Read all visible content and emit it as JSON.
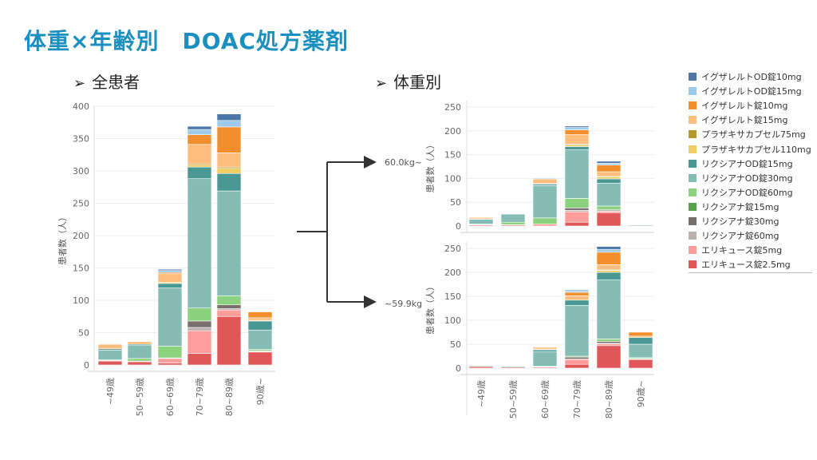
{
  "title": "体重×年齢別　DOAC処方薬剤",
  "panel_all_label": "全患者",
  "panel_weight_label": "体重別",
  "weight_group_high": "60.0kg~",
  "weight_group_low": "~59.9kg",
  "colors": [
    "#4a76a8",
    "#9ecae9",
    "#f28e2b",
    "#ffbe7d",
    "#b6992d",
    "#f1ce63",
    "#499894",
    "#86bcb6",
    "#8cd17d",
    "#59a14f",
    "#79706e",
    "#bab0ac",
    "#ff9d9a",
    "#e15759"
  ],
  "chart_data": [
    {
      "type": "bar",
      "stacked": true,
      "title": "",
      "ylabel": "患者数（人）",
      "xlabel": "",
      "ylim": [
        0,
        400
      ],
      "yticks": [
        0,
        50,
        100,
        150,
        200,
        250,
        300,
        350,
        400
      ],
      "grid": true,
      "categories": [
        "~49歳",
        "50~59歳",
        "60~69歳",
        "70~79歳",
        "80~89歳",
        "90歳~"
      ],
      "series": [
        {
          "name": "エリキュース錠2.5mg",
          "values": [
            6,
            5,
            3,
            18,
            75,
            20
          ]
        },
        {
          "name": "エリキュース錠5mg",
          "values": [
            1,
            1,
            7,
            35,
            10,
            1
          ]
        },
        {
          "name": "リクシアナ錠60mg",
          "values": [
            0,
            0,
            0,
            5,
            2,
            0
          ]
        },
        {
          "name": "リクシアナ錠30mg",
          "values": [
            0,
            0,
            1,
            10,
            6,
            1
          ]
        },
        {
          "name": "リクシアナ錠15mg",
          "values": [
            0,
            0,
            0,
            0,
            0,
            0
          ]
        },
        {
          "name": "リクシアナOD錠60mg",
          "values": [
            1,
            4,
            18,
            20,
            14,
            2
          ]
        },
        {
          "name": "リクシアナOD錠30mg",
          "values": [
            15,
            20,
            90,
            200,
            162,
            30
          ]
        },
        {
          "name": "リクシアナOD錠15mg",
          "values": [
            2,
            2,
            7,
            18,
            27,
            14
          ]
        },
        {
          "name": "プラザキサカプセル110mg",
          "values": [
            0,
            0,
            2,
            3,
            8,
            1
          ]
        },
        {
          "name": "プラザキサカプセル75mg",
          "values": [
            0,
            0,
            0,
            2,
            2,
            0
          ]
        },
        {
          "name": "イグザレルト錠15mg",
          "values": [
            7,
            4,
            13,
            30,
            22,
            4
          ]
        },
        {
          "name": "イグザレルト錠10mg",
          "values": [
            0,
            0,
            2,
            15,
            40,
            9
          ]
        },
        {
          "name": "イグザレルトOD錠15mg",
          "values": [
            0,
            0,
            3,
            8,
            10,
            0
          ]
        },
        {
          "name": "イグザレルトOD錠10mg",
          "values": [
            0,
            0,
            2,
            5,
            10,
            0
          ]
        }
      ]
    },
    {
      "type": "bar",
      "stacked": true,
      "title": "60.0kg~",
      "ylabel": "患者数（人）",
      "xlabel": "",
      "ylim": [
        0,
        260
      ],
      "yticks": [
        0,
        50,
        100,
        150,
        200,
        250
      ],
      "grid": true,
      "categories": [
        "~49歳",
        "50~59歳",
        "60~69歳",
        "70~79歳",
        "80~89歳",
        "90歳~"
      ],
      "series": [
        {
          "name": "エリキュース錠2.5mg",
          "values": [
            2,
            2,
            0,
            8,
            28,
            0
          ]
        },
        {
          "name": "エリキュース錠5mg",
          "values": [
            1,
            1,
            4,
            22,
            3,
            0
          ]
        },
        {
          "name": "リクシアナ錠60mg",
          "values": [
            0,
            0,
            0,
            3,
            1,
            0
          ]
        },
        {
          "name": "リクシアナ錠30mg",
          "values": [
            0,
            0,
            0,
            5,
            2,
            0
          ]
        },
        {
          "name": "リクシアナ錠15mg",
          "values": [
            0,
            0,
            0,
            0,
            0,
            0
          ]
        },
        {
          "name": "リクシアナOD錠60mg",
          "values": [
            1,
            5,
            13,
            20,
            8,
            0
          ]
        },
        {
          "name": "リクシアナOD錠30mg",
          "values": [
            10,
            17,
            68,
            102,
            48,
            2
          ]
        },
        {
          "name": "リクシアナOD錠15mg",
          "values": [
            1,
            1,
            3,
            7,
            9,
            0
          ]
        },
        {
          "name": "プラザキサカプセル110mg",
          "values": [
            0,
            0,
            1,
            3,
            4,
            0
          ]
        },
        {
          "name": "プラザキサカプセル75mg",
          "values": [
            0,
            0,
            0,
            2,
            1,
            0
          ]
        },
        {
          "name": "イグザレルト錠15mg",
          "values": [
            3,
            1,
            10,
            20,
            10,
            0
          ]
        },
        {
          "name": "イグザレルト錠10mg",
          "values": [
            0,
            0,
            0,
            10,
            14,
            1
          ]
        },
        {
          "name": "イグザレルトOD錠15mg",
          "values": [
            0,
            0,
            2,
            5,
            4,
            0
          ]
        },
        {
          "name": "イグザレルトOD錠10mg",
          "values": [
            0,
            0,
            1,
            3,
            4,
            0
          ]
        }
      ]
    },
    {
      "type": "bar",
      "stacked": true,
      "title": "~59.9kg",
      "ylabel": "患者数（人）",
      "xlabel": "",
      "ylim": [
        0,
        260
      ],
      "yticks": [
        0,
        50,
        100,
        150,
        200,
        250
      ],
      "grid": true,
      "categories": [
        "~49歳",
        "50~59歳",
        "60~69歳",
        "70~79歳",
        "80~89歳",
        "90歳~"
      ],
      "series": [
        {
          "name": "エリキュース錠2.5mg",
          "values": [
            3,
            2,
            2,
            8,
            47,
            18
          ]
        },
        {
          "name": "エリキュース錠5mg",
          "values": [
            0,
            0,
            1,
            10,
            4,
            1
          ]
        },
        {
          "name": "リクシアナ錠60mg",
          "values": [
            0,
            0,
            0,
            1,
            1,
            0
          ]
        },
        {
          "name": "リクシアナ錠30mg",
          "values": [
            0,
            0,
            0,
            4,
            4,
            1
          ]
        },
        {
          "name": "リクシアナ錠15mg",
          "values": [
            0,
            0,
            0,
            0,
            0,
            0
          ]
        },
        {
          "name": "リクシアナOD錠60mg",
          "values": [
            0,
            0,
            1,
            2,
            5,
            2
          ]
        },
        {
          "name": "リクシアナOD錠30mg",
          "values": [
            2,
            2,
            30,
            106,
            123,
            28
          ]
        },
        {
          "name": "リクシアナOD錠15mg",
          "values": [
            0,
            0,
            4,
            11,
            16,
            14
          ]
        },
        {
          "name": "プラザキサカプセル110mg",
          "values": [
            0,
            0,
            1,
            0,
            4,
            0
          ]
        },
        {
          "name": "プラザキサカプセル75mg",
          "values": [
            0,
            0,
            0,
            0,
            1,
            0
          ]
        },
        {
          "name": "イグザレルト錠15mg",
          "values": [
            1,
            1,
            3,
            9,
            11,
            3
          ]
        },
        {
          "name": "イグザレルト錠10mg",
          "values": [
            0,
            0,
            2,
            7,
            26,
            8
          ]
        },
        {
          "name": "イグザレルトOD錠15mg",
          "values": [
            0,
            0,
            1,
            3,
            6,
            0
          ]
        },
        {
          "name": "イグザレルトOD錠10mg",
          "values": [
            0,
            0,
            1,
            2,
            6,
            0
          ]
        }
      ]
    }
  ],
  "legend": [
    {
      "label": "イグザレルトOD錠10mg",
      "color": "#4a76a8"
    },
    {
      "label": "イグザレルトOD錠15mg",
      "color": "#9ecae9"
    },
    {
      "label": "イグザレルト錠10mg",
      "color": "#f28e2b"
    },
    {
      "label": "イグザレルト錠15mg",
      "color": "#ffbe7d"
    },
    {
      "label": "プラザキサカプセル75mg",
      "color": "#b6992d"
    },
    {
      "label": "プラザキサカプセル110mg",
      "color": "#f1ce63"
    },
    {
      "label": "リクシアナOD錠15mg",
      "color": "#499894"
    },
    {
      "label": "リクシアナOD錠30mg",
      "color": "#86bcb6"
    },
    {
      "label": "リクシアナOD錠60mg",
      "color": "#8cd17d"
    },
    {
      "label": "リクシアナ錠15mg",
      "color": "#59a14f"
    },
    {
      "label": "リクシアナ錠30mg",
      "color": "#79706e"
    },
    {
      "label": "リクシアナ錠60mg",
      "color": "#bab0ac"
    },
    {
      "label": "エリキュース錠5mg",
      "color": "#ff9d9a"
    },
    {
      "label": "エリキュース錠2.5mg",
      "color": "#e15759"
    }
  ]
}
